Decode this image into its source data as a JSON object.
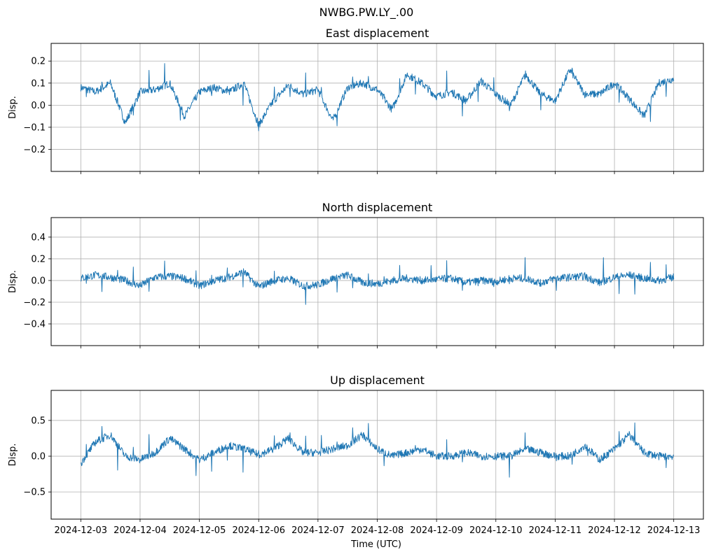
{
  "figure": {
    "suptitle": "NWBG.PW.LY_.00",
    "xlabel": "Time (UTC)"
  },
  "colors": {
    "line": "#1f77b4",
    "grid": "#b0b0b0",
    "axes": "#000000",
    "background": "#ffffff"
  },
  "chart_data": [
    {
      "type": "line",
      "title": "East displacement",
      "xlabel": "",
      "ylabel": "Disp.",
      "ylim": [
        -0.3,
        0.28
      ],
      "yticks": [
        -0.2,
        -0.1,
        0.0,
        0.1,
        0.2
      ],
      "ytick_labels": [
        "−0.2",
        "−0.1",
        "0.0",
        "0.1",
        "0.2"
      ],
      "grid": true,
      "series": [
        {
          "x": [
            "2024-12-03 00:00",
            "2024-12-03 06:00",
            "2024-12-03 12:00",
            "2024-12-03 18:00",
            "2024-12-04 00:00",
            "2024-12-04 06:00",
            "2024-12-04 12:00",
            "2024-12-04 18:00",
            "2024-12-05 00:00",
            "2024-12-05 06:00",
            "2024-12-05 12:00",
            "2024-12-05 18:00",
            "2024-12-06 00:00",
            "2024-12-06 06:00",
            "2024-12-06 12:00",
            "2024-12-06 18:00",
            "2024-12-07 00:00",
            "2024-12-07 06:00",
            "2024-12-07 12:00",
            "2024-12-07 18:00",
            "2024-12-08 00:00",
            "2024-12-08 06:00",
            "2024-12-08 12:00",
            "2024-12-08 18:00",
            "2024-12-09 00:00",
            "2024-12-09 06:00",
            "2024-12-09 12:00",
            "2024-12-09 18:00",
            "2024-12-10 00:00",
            "2024-12-10 06:00",
            "2024-12-10 12:00",
            "2024-12-10 18:00",
            "2024-12-11 00:00",
            "2024-12-11 06:00",
            "2024-12-11 12:00",
            "2024-12-11 18:00",
            "2024-12-12 00:00",
            "2024-12-12 06:00",
            "2024-12-12 12:00",
            "2024-12-12 18:00",
            "2024-12-13 00:00"
          ],
          "y": [
            0.08,
            0.06,
            0.1,
            -0.08,
            0.06,
            0.07,
            0.1,
            -0.05,
            0.06,
            0.08,
            0.06,
            0.1,
            -0.09,
            0.02,
            0.09,
            0.05,
            0.07,
            -0.07,
            0.08,
            0.1,
            0.07,
            -0.02,
            0.14,
            0.1,
            0.04,
            0.06,
            0.02,
            0.11,
            0.05,
            0.0,
            0.14,
            0.05,
            0.02,
            0.16,
            0.05,
            0.05,
            0.1,
            0.03,
            -0.05,
            0.1,
            0.12
          ]
        }
      ]
    },
    {
      "type": "line",
      "title": "North displacement",
      "xlabel": "",
      "ylabel": "Disp.",
      "ylim": [
        -0.6,
        0.58
      ],
      "yticks": [
        -0.4,
        -0.2,
        0.0,
        0.2,
        0.4
      ],
      "ytick_labels": [
        "−0.4",
        "−0.2",
        "0.0",
        "0.2",
        "0.4"
      ],
      "grid": true,
      "series": [
        {
          "x": [
            "2024-12-03 00:00",
            "2024-12-03 06:00",
            "2024-12-03 12:00",
            "2024-12-03 18:00",
            "2024-12-04 00:00",
            "2024-12-04 06:00",
            "2024-12-04 12:00",
            "2024-12-04 18:00",
            "2024-12-05 00:00",
            "2024-12-05 06:00",
            "2024-12-05 12:00",
            "2024-12-05 18:00",
            "2024-12-06 00:00",
            "2024-12-06 06:00",
            "2024-12-06 12:00",
            "2024-12-06 18:00",
            "2024-12-07 00:00",
            "2024-12-07 06:00",
            "2024-12-07 12:00",
            "2024-12-07 18:00",
            "2024-12-08 00:00",
            "2024-12-08 06:00",
            "2024-12-08 12:00",
            "2024-12-08 18:00",
            "2024-12-09 00:00",
            "2024-12-09 06:00",
            "2024-12-09 12:00",
            "2024-12-09 18:00",
            "2024-12-10 00:00",
            "2024-12-10 06:00",
            "2024-12-10 12:00",
            "2024-12-10 18:00",
            "2024-12-11 00:00",
            "2024-12-11 06:00",
            "2024-12-11 12:00",
            "2024-12-11 18:00",
            "2024-12-12 00:00",
            "2024-12-12 06:00",
            "2024-12-12 12:00",
            "2024-12-12 18:00",
            "2024-12-13 00:00"
          ],
          "y": [
            0.02,
            0.05,
            0.03,
            0.0,
            -0.05,
            0.03,
            0.04,
            0.02,
            -0.05,
            0.0,
            0.03,
            0.08,
            -0.06,
            0.0,
            0.02,
            -0.05,
            -0.04,
            0.02,
            0.05,
            -0.02,
            -0.03,
            0.0,
            0.02,
            0.0,
            0.01,
            0.02,
            -0.02,
            0.0,
            -0.01,
            0.02,
            0.02,
            -0.02,
            0.02,
            0.03,
            0.04,
            -0.02,
            0.03,
            0.05,
            0.02,
            0.0,
            0.03
          ]
        }
      ]
    },
    {
      "type": "line",
      "title": "Up displacement",
      "xlabel": "Time (UTC)",
      "ylabel": "Disp.",
      "ylim": [
        -0.88,
        0.92
      ],
      "yticks": [
        -0.5,
        0.0,
        0.5
      ],
      "ytick_labels": [
        "−0.5",
        "0.0",
        "0.5"
      ],
      "grid": true,
      "xtick_labels": [
        "2024-12-03",
        "2024-12-04",
        "2024-12-05",
        "2024-12-06",
        "2024-12-07",
        "2024-12-08",
        "2024-12-09",
        "2024-12-10",
        "2024-12-11",
        "2024-12-12",
        "2024-12-13"
      ],
      "series": [
        {
          "x": [
            "2024-12-03 00:00",
            "2024-12-03 06:00",
            "2024-12-03 12:00",
            "2024-12-03 18:00",
            "2024-12-04 00:00",
            "2024-12-04 06:00",
            "2024-12-04 12:00",
            "2024-12-04 18:00",
            "2024-12-05 00:00",
            "2024-12-05 06:00",
            "2024-12-05 12:00",
            "2024-12-05 18:00",
            "2024-12-06 00:00",
            "2024-12-06 06:00",
            "2024-12-06 12:00",
            "2024-12-06 18:00",
            "2024-12-07 00:00",
            "2024-12-07 06:00",
            "2024-12-07 12:00",
            "2024-12-07 18:00",
            "2024-12-08 00:00",
            "2024-12-08 06:00",
            "2024-12-08 12:00",
            "2024-12-08 18:00",
            "2024-12-09 00:00",
            "2024-12-09 06:00",
            "2024-12-09 12:00",
            "2024-12-09 18:00",
            "2024-12-10 00:00",
            "2024-12-10 06:00",
            "2024-12-10 12:00",
            "2024-12-10 18:00",
            "2024-12-11 00:00",
            "2024-12-11 06:00",
            "2024-12-11 12:00",
            "2024-12-11 18:00",
            "2024-12-12 00:00",
            "2024-12-12 06:00",
            "2024-12-12 12:00",
            "2024-12-12 18:00",
            "2024-12-13 00:00"
          ],
          "y": [
            -0.1,
            0.2,
            0.3,
            0.0,
            -0.05,
            0.05,
            0.25,
            0.1,
            -0.05,
            0.05,
            0.15,
            0.1,
            0.02,
            0.1,
            0.25,
            0.05,
            0.05,
            0.1,
            0.15,
            0.3,
            0.1,
            0.0,
            0.05,
            0.1,
            0.0,
            0.0,
            0.05,
            0.0,
            0.0,
            0.0,
            0.1,
            0.05,
            0.0,
            0.0,
            0.15,
            -0.05,
            0.1,
            0.3,
            0.05,
            0.0,
            0.0
          ]
        }
      ]
    }
  ]
}
